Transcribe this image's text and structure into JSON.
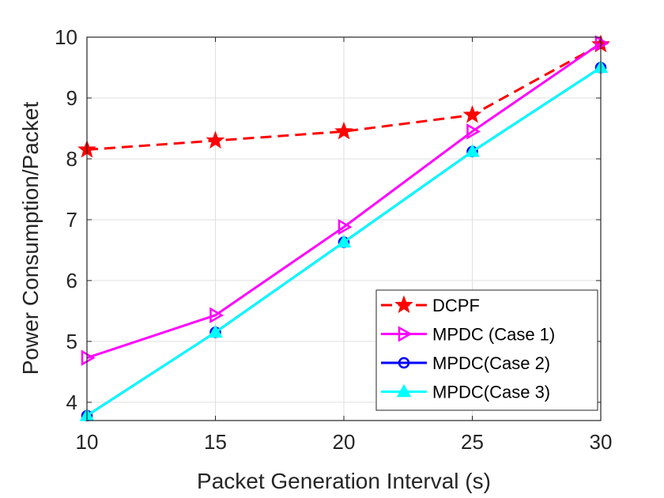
{
  "chart_data": {
    "type": "line",
    "title": "",
    "xlabel": "Packet Generation Interval (s)",
    "ylabel": "Power Consumption/Packet",
    "x": [
      10,
      15,
      20,
      25,
      30
    ],
    "xlim": [
      10,
      30
    ],
    "ylim": [
      3.7,
      10
    ],
    "xticks": [
      "10",
      "15",
      "20",
      "25",
      "30"
    ],
    "yticks": [
      "4",
      "5",
      "6",
      "7",
      "8",
      "9",
      "10"
    ],
    "grid": true,
    "legend_position": "bottom-right",
    "series": [
      {
        "name": "DCPF",
        "values": [
          8.15,
          8.3,
          8.45,
          8.72,
          9.88
        ],
        "color": "#ff0000",
        "line": "dashed",
        "marker": "star"
      },
      {
        "name": "MPDC (Case 1)",
        "values": [
          4.73,
          5.43,
          6.88,
          8.45,
          9.9
        ],
        "color": "#ff00ff",
        "line": "solid",
        "marker": "triangle-right"
      },
      {
        "name": "MPDC(Case 2)",
        "values": [
          3.78,
          5.15,
          6.63,
          8.12,
          9.5
        ],
        "color": "#0000ff",
        "line": "solid",
        "marker": "circle"
      },
      {
        "name": "MPDC(Case 3)",
        "values": [
          3.78,
          5.15,
          6.63,
          8.12,
          9.5
        ],
        "color": "#00ffff",
        "line": "solid",
        "marker": "triangle-up"
      }
    ]
  }
}
